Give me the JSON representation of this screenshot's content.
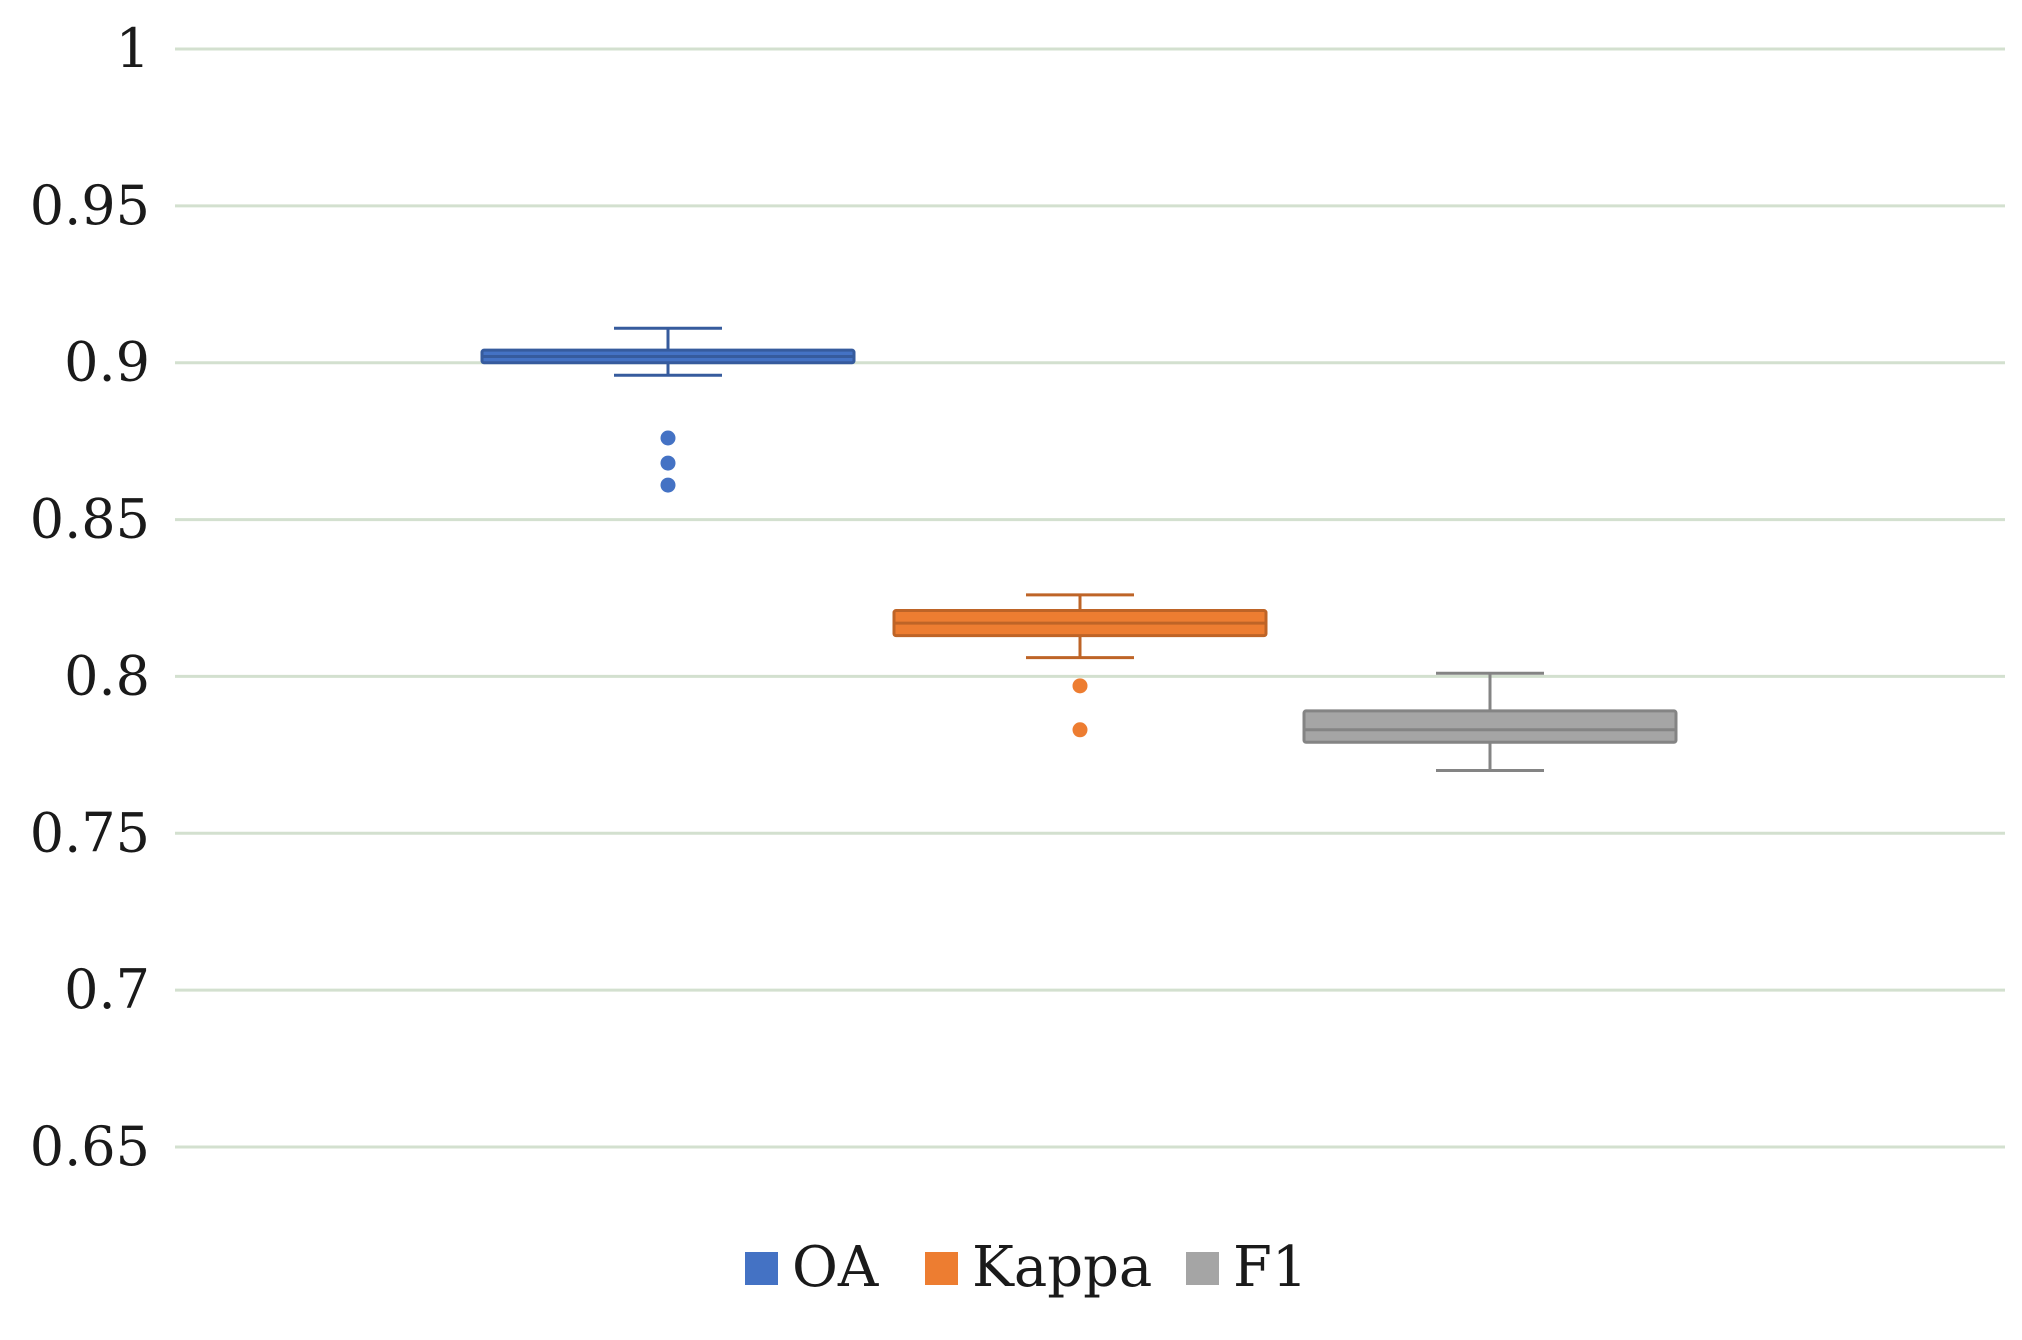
{
  "chart_data": {
    "type": "box",
    "ylim": [
      0.65,
      1
    ],
    "yticks": [
      {
        "value": 0.65,
        "label": "0.65"
      },
      {
        "value": 0.7,
        "label": "0.7"
      },
      {
        "value": 0.75,
        "label": "0.75"
      },
      {
        "value": 0.8,
        "label": "0.8"
      },
      {
        "value": 0.85,
        "label": "0.85"
      },
      {
        "value": 0.9,
        "label": "0.9"
      },
      {
        "value": 0.95,
        "label": "0.95"
      },
      {
        "value": 1,
        "label": "1"
      }
    ],
    "grid": true,
    "legend_position": "bottom",
    "series": [
      {
        "name": "OA",
        "color": "#4472C4",
        "whisker_low": 0.896,
        "q1": 0.9,
        "median": 0.902,
        "q3": 0.904,
        "whisker_high": 0.911,
        "outliers": [
          0.876,
          0.868,
          0.861
        ]
      },
      {
        "name": "Kappa",
        "color": "#ED7D31",
        "whisker_low": 0.806,
        "q1": 0.813,
        "median": 0.817,
        "q3": 0.821,
        "whisker_high": 0.826,
        "outliers": [
          0.797,
          0.783
        ]
      },
      {
        "name": "F1",
        "color": "#A5A5A5",
        "whisker_low": 0.77,
        "q1": 0.779,
        "median": 0.783,
        "q3": 0.789,
        "whisker_high": 0.801,
        "outliers": []
      }
    ]
  }
}
